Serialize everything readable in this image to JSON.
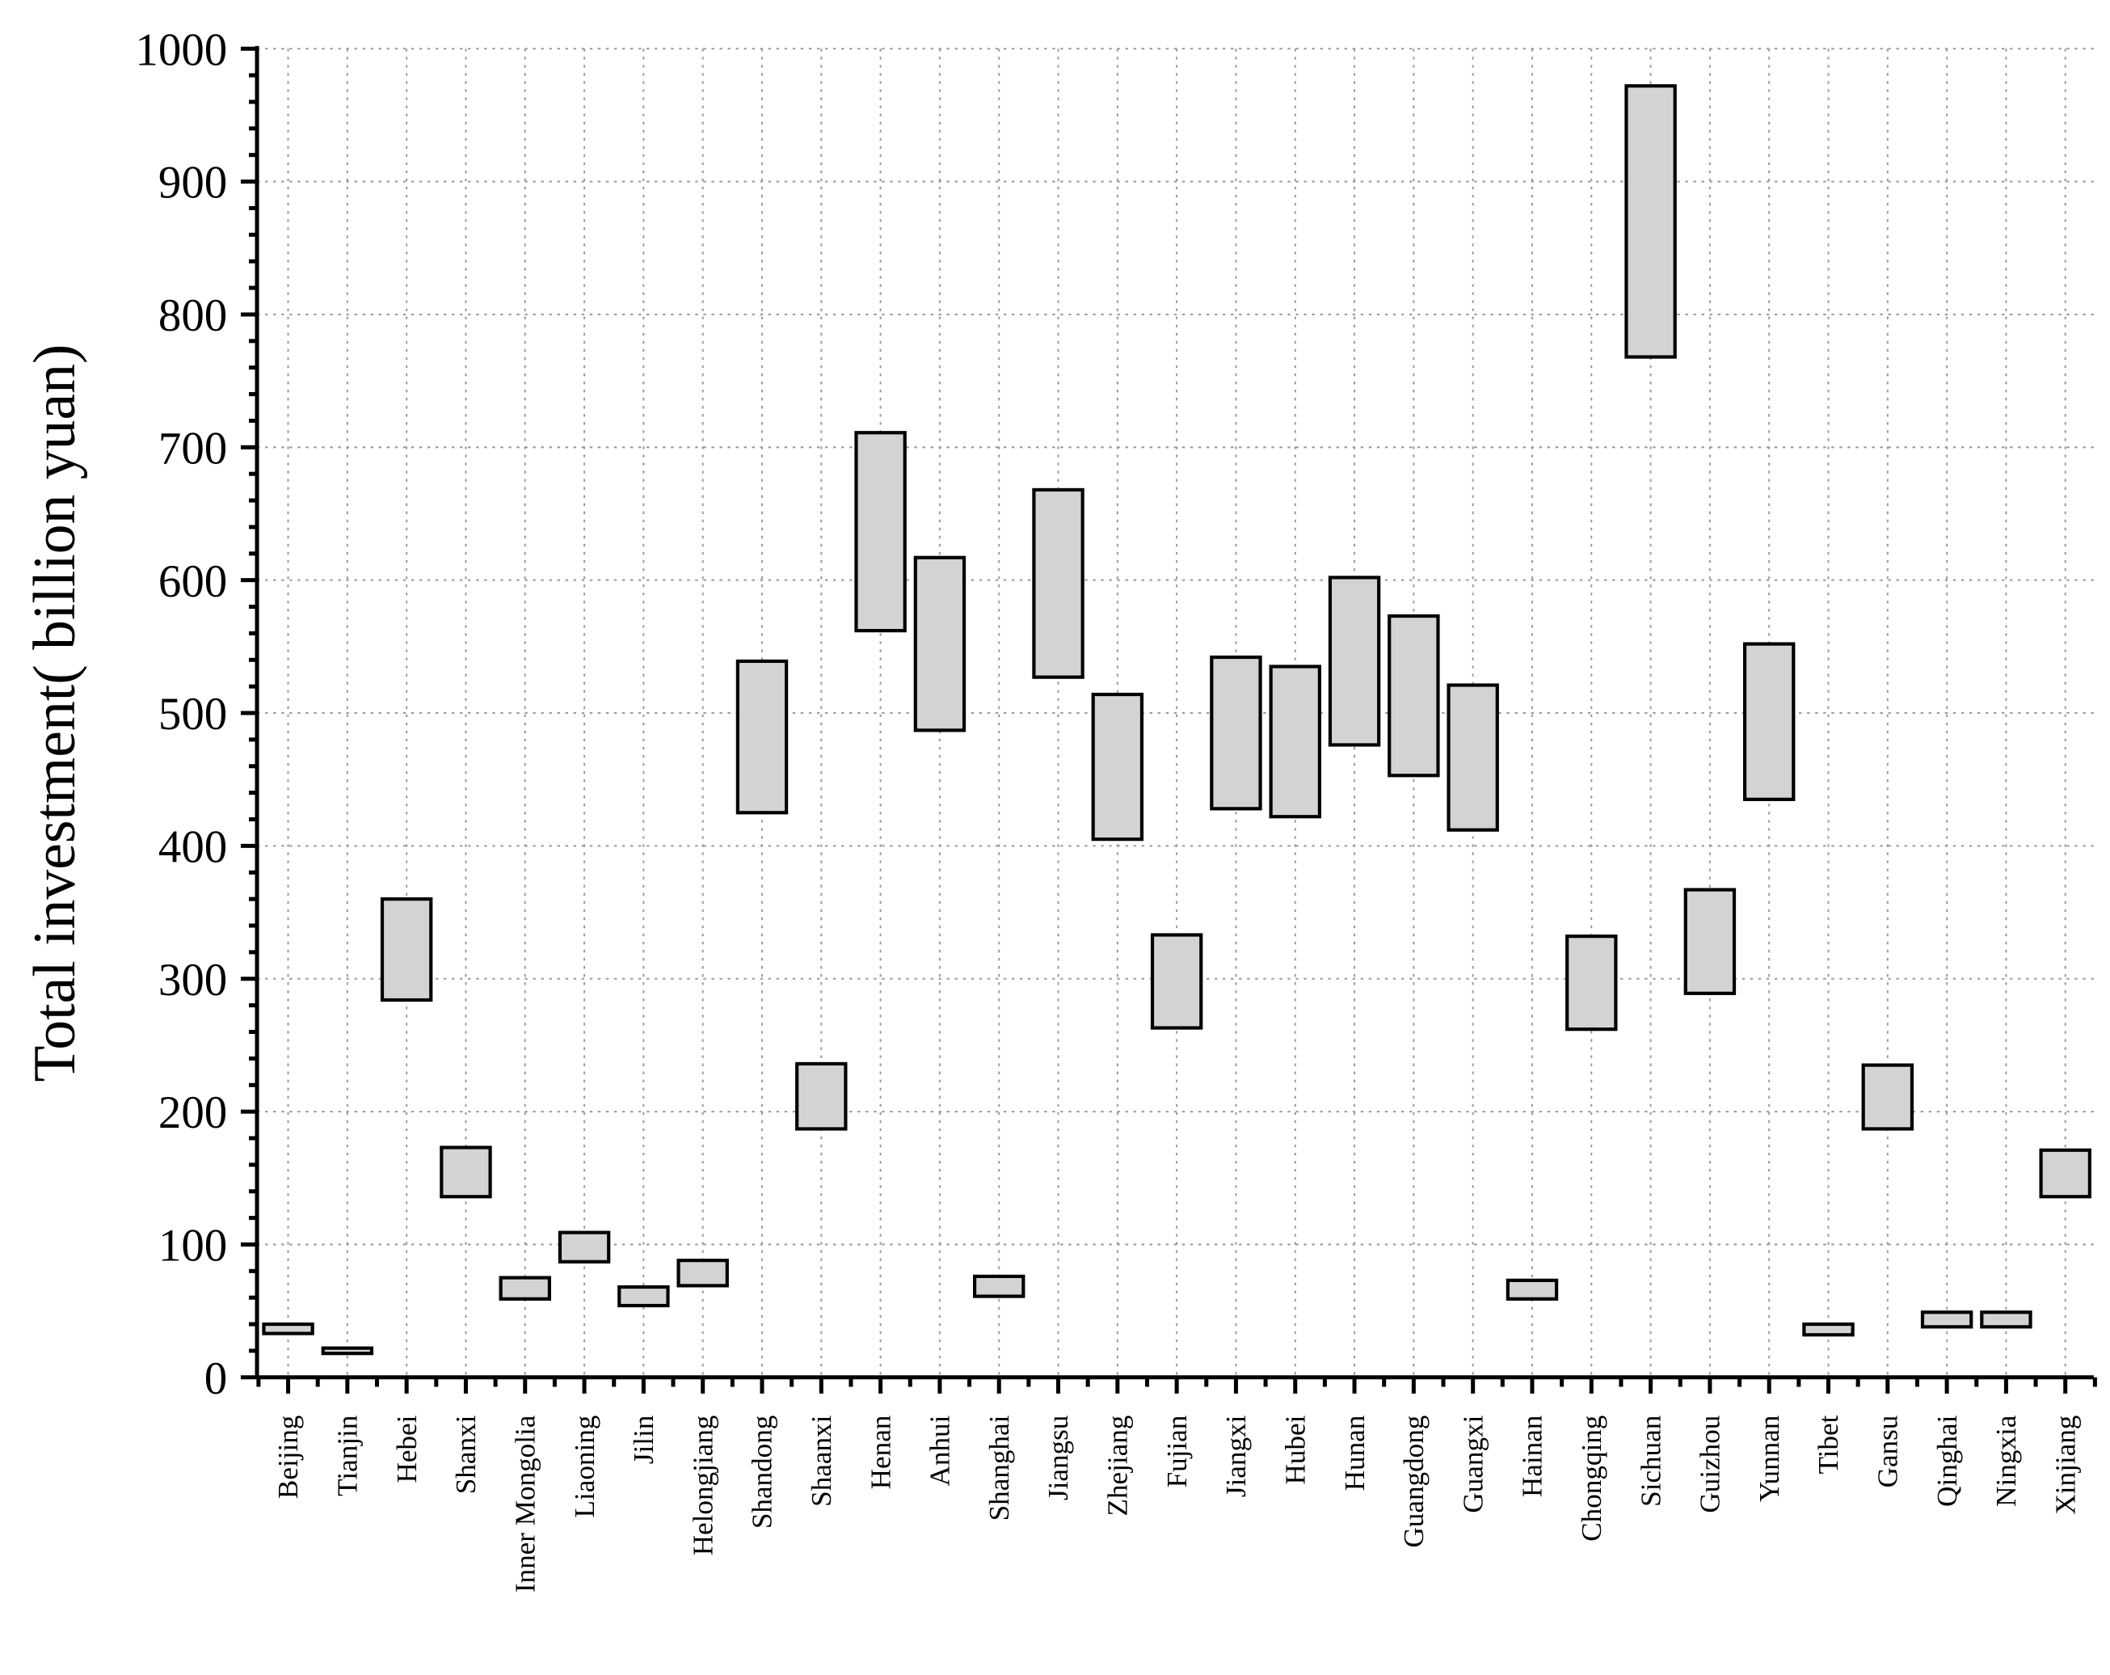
{
  "chart_data": {
    "type": "floating-bar",
    "title": "",
    "xlabel": "",
    "ylabel": "Total investment( billion yuan)",
    "ylim": [
      0,
      1000
    ],
    "yticks": [
      0,
      100,
      200,
      300,
      400,
      500,
      600,
      700,
      800,
      900,
      1000
    ],
    "grid": true,
    "bar_fill": "#d3d3d3",
    "bar_stroke": "#000000",
    "categories": [
      "Beijing",
      "Tianjin",
      "Hebei",
      "Shanxi",
      "Inner Mongolia",
      "Liaoning",
      "Jilin",
      "Helongjiang",
      "Shandong",
      "Shaanxi",
      "Henan",
      "Anhui",
      "Shanghai",
      "Jiangsu",
      "Zhejiang",
      "Fujian",
      "Jiangxi",
      "Hubei",
      "Hunan",
      "Guangdong",
      "Guangxi",
      "Hainan",
      "Chongqing",
      "Sichuan",
      "Guizhou",
      "Yunnan",
      "Tibet",
      "Gansu",
      "Qinghai",
      "Ningxia",
      "Xinjiang"
    ],
    "low": [
      33,
      18,
      284,
      136,
      59,
      87,
      54,
      69,
      425,
      187,
      562,
      487,
      61,
      527,
      405,
      263,
      428,
      422,
      476,
      453,
      412,
      59,
      262,
      768,
      289,
      435,
      32,
      187,
      38,
      38,
      136
    ],
    "high": [
      40,
      22,
      360,
      173,
      75,
      109,
      68,
      88,
      539,
      236,
      711,
      617,
      76,
      668,
      514,
      333,
      542,
      535,
      602,
      573,
      521,
      73,
      332,
      972,
      367,
      552,
      40,
      235,
      49,
      49,
      171
    ]
  }
}
